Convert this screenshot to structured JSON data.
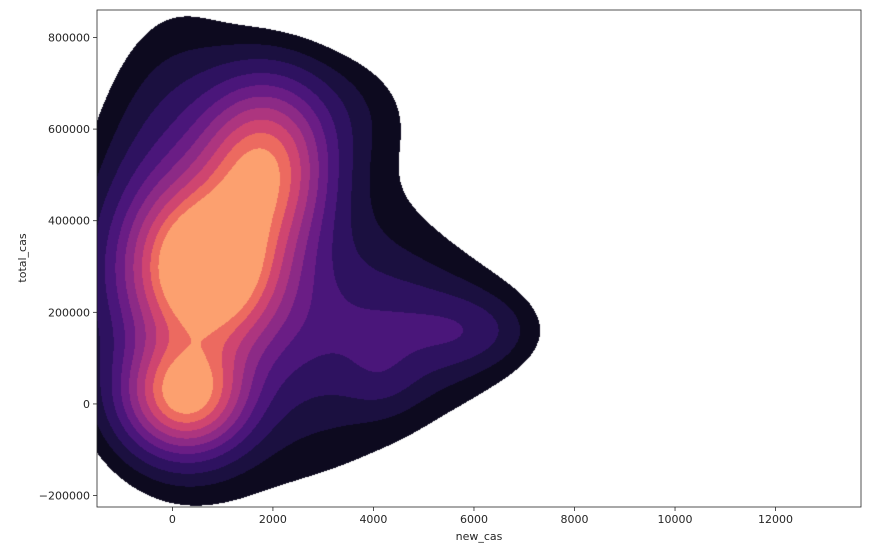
{
  "chart_data": {
    "type": "kde-contour",
    "xlabel": "new_cas",
    "ylabel": "total_cas",
    "xlim": [
      -1500,
      13700
    ],
    "ylim": [
      -225000,
      860000
    ],
    "x_ticks": [
      0,
      2000,
      4000,
      6000,
      8000,
      10000,
      12000
    ],
    "x_tick_labels": [
      "0",
      "2000",
      "4000",
      "6000",
      "8000",
      "10000",
      "12000"
    ],
    "y_ticks": [
      -200000,
      0,
      200000,
      400000,
      600000,
      800000
    ],
    "y_tick_labels": [
      "−200000",
      "0",
      "200000",
      "400000",
      "600000",
      "800000"
    ],
    "colormap": "magma",
    "level_colors": [
      "#0d0a1f",
      "#1b1040",
      "#2e1260",
      "#4a167a",
      "#6a1d85",
      "#8c2a86",
      "#ad357f",
      "#cf4570",
      "#ec6a60",
      "#fca06f"
    ],
    "density_peaks": [
      {
        "x": 700,
        "y": 300000,
        "strength": 1.0
      },
      {
        "x": 1800,
        "y": 540000,
        "strength": 0.72
      },
      {
        "x": 250,
        "y": 10000,
        "strength": 0.78
      }
    ],
    "grid": false
  }
}
